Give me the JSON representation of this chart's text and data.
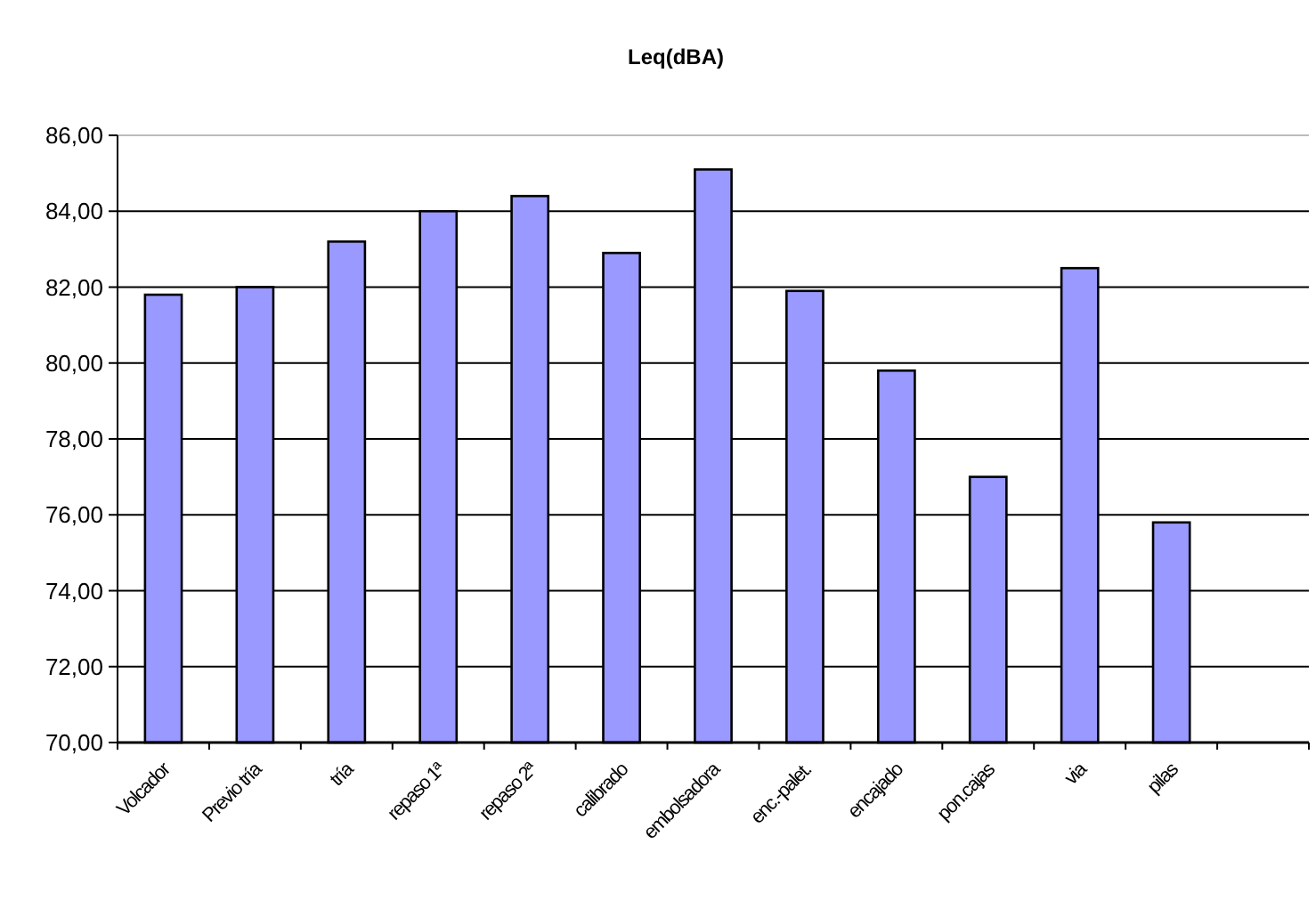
{
  "chart_data": {
    "type": "bar",
    "title": "Leq(dBA)",
    "categories": [
      "Volcador",
      "Previo tría",
      "tría",
      "repaso 1ª",
      "repaso 2ª",
      "calibrado",
      "embolsadora",
      "enc.-palet.",
      "encajado",
      "pon.cajas",
      "via",
      "pilas",
      null
    ],
    "values": [
      81.8,
      82.0,
      83.2,
      84.0,
      84.4,
      82.9,
      85.1,
      81.9,
      79.8,
      77.0,
      82.5,
      75.8,
      null
    ],
    "color": "#9999ff",
    "ylim": [
      70,
      86
    ],
    "yticks": [
      {
        "value": 70,
        "label": "70,00"
      },
      {
        "value": 72,
        "label": "72,00"
      },
      {
        "value": 74,
        "label": "74,00"
      },
      {
        "value": 76,
        "label": "76,00"
      },
      {
        "value": 78,
        "label": "78,00"
      },
      {
        "value": 80,
        "label": "80,00"
      },
      {
        "value": 82,
        "label": "82,00"
      },
      {
        "value": 84,
        "label": "84,00"
      },
      {
        "value": 86,
        "label": "86,00"
      }
    ],
    "grid": "y"
  }
}
